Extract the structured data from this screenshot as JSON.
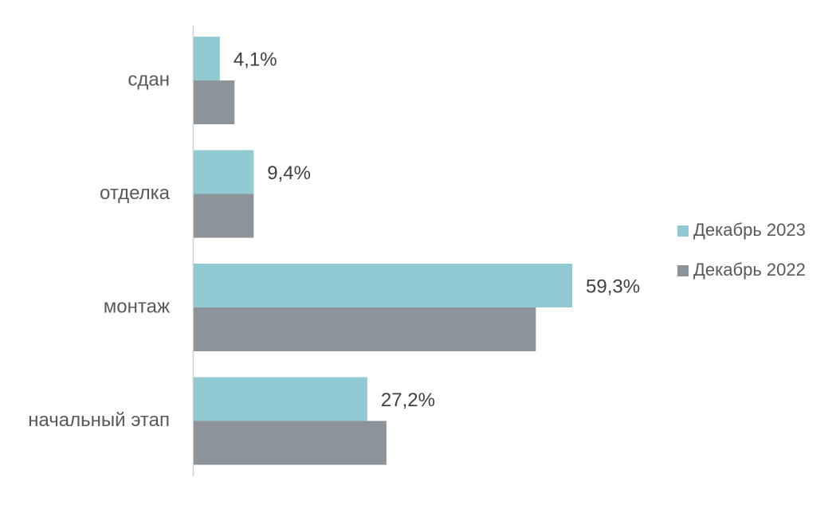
{
  "chart_data": {
    "type": "bar",
    "orientation": "horizontal",
    "categories": [
      "сдан",
      "отделка",
      "монтаж",
      "начальный этап"
    ],
    "series": [
      {
        "name": "Декабрь 2023",
        "color": "#92cad4",
        "values": [
          4.1,
          9.4,
          59.3,
          27.2
        ],
        "value_labels": [
          "4,1%",
          "9,4%",
          "59,3%",
          "27,2%"
        ]
      },
      {
        "name": "Декабрь 2022",
        "color": "#8c9399",
        "values": [
          6.4,
          9.4,
          53.6,
          30.2
        ]
      }
    ],
    "legend": "right"
  }
}
